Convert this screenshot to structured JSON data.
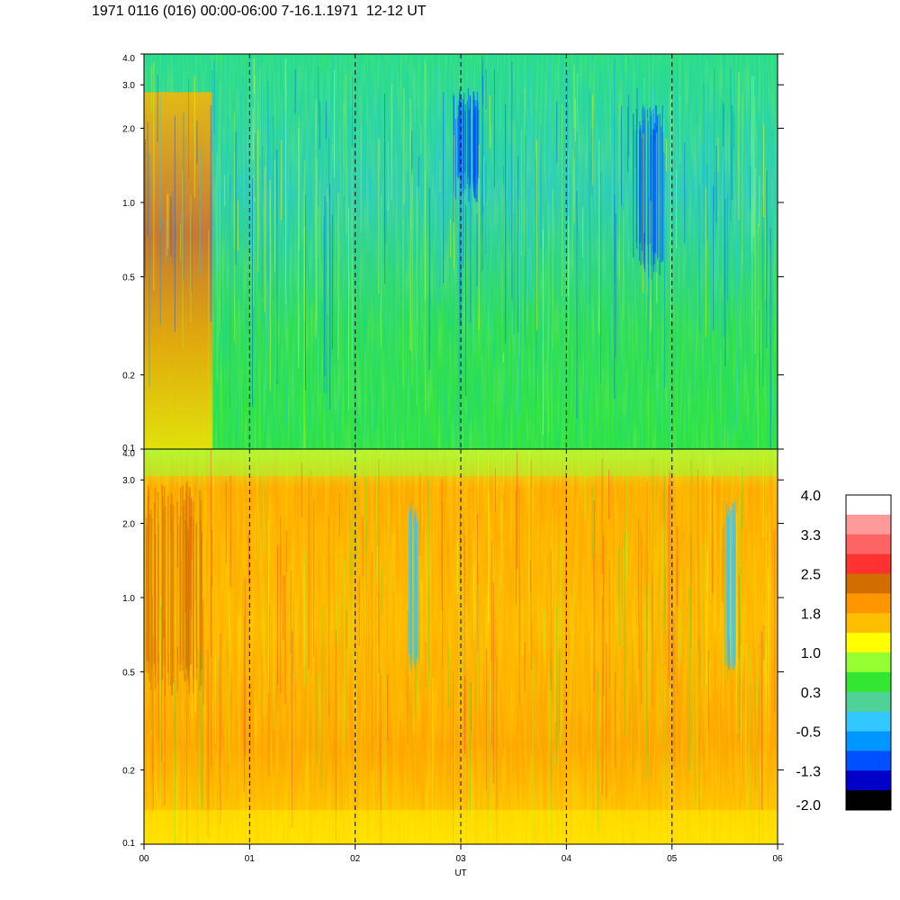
{
  "chart_data": {
    "type": "heatmap",
    "title": "1971 0116 (016) 00:00-06:00 7-16.1.1971  12-12 UT",
    "xlabel": "UT",
    "x_ticks": [
      "00",
      "01",
      "02",
      "03",
      "04",
      "05",
      "06"
    ],
    "x_range_hours": [
      0,
      6
    ],
    "dashed_gridlines_at_hours": [
      1,
      2,
      3,
      4,
      5
    ],
    "y_scale": "log",
    "y_range": [
      0.1,
      4.0
    ],
    "y_ticks": [
      "0.1",
      "0.2",
      "0.5",
      "1.0",
      "2.0",
      "3.0",
      "4.0"
    ],
    "panels": [
      {
        "id": "upper",
        "dominant_level": "0.3",
        "features": [
          {
            "hours": [
              0.0,
              0.65
            ],
            "y": [
              0.1,
              2.8
            ],
            "level": "1.8",
            "note": "warm region at start"
          },
          {
            "hours": [
              3.0,
              3.1
            ],
            "y": [
              1.0,
              3.0
            ],
            "level": "-1.3"
          },
          {
            "hours": [
              4.7,
              4.85
            ],
            "y": [
              0.5,
              2.5
            ],
            "level": "-1.3"
          }
        ]
      },
      {
        "id": "lower",
        "dominant_level": "1.8",
        "features": [
          {
            "hours": [
              0.0,
              0.55
            ],
            "y": [
              0.4,
              3.0
            ],
            "level": "2.5"
          },
          {
            "hours": [
              2.5,
              2.6
            ],
            "y": [
              0.5,
              2.5
            ],
            "level": "-0.5"
          },
          {
            "hours": [
              5.5,
              5.6
            ],
            "y": [
              0.5,
              2.5
            ],
            "level": "-0.5"
          }
        ]
      }
    ],
    "colorbar": {
      "labels": [
        "4.0",
        "3.3",
        "2.5",
        "1.8",
        "1.0",
        "0.3",
        "-0.5",
        "-1.3",
        "-2.0"
      ],
      "colors": [
        "#ffffff",
        "#ff9a9a",
        "#ff6464",
        "#ff3232",
        "#d26e00",
        "#ff9600",
        "#ffbe00",
        "#ffff00",
        "#96ff32",
        "#32e632",
        "#50d296",
        "#32c8ff",
        "#0096ff",
        "#0050ff",
        "#0000c8",
        "#000000"
      ]
    }
  }
}
